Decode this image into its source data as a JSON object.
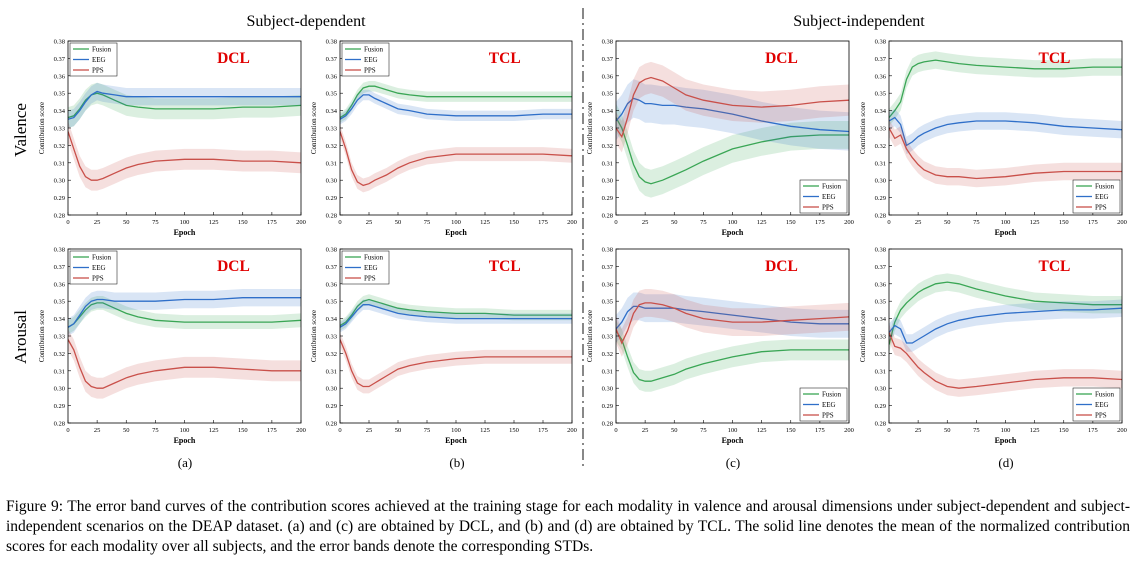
{
  "headers": {
    "left": "Subject-dependent",
    "right": "Subject-independent"
  },
  "row_labels": [
    "Valence",
    "Arousal"
  ],
  "column_labels": [
    "(a)",
    "(b)",
    "(c)",
    "(d)"
  ],
  "caption": "Figure 9: The error band curves of the contribution scores achieved at the training stage for each modality in valence and arousal dimensions under subject-dependent and subject-independent scenarios on the DEAP dataset. (a) and (c) are obtained by DCL, and (b) and (d) are obtained by TCL. The solid line denotes the mean of the normalized contribution scores for each modality over all subjects, and the error bands denote the corresponding STDs.",
  "colors": {
    "Fusion": "#3aa655",
    "EEG": "#2f6fc9",
    "PPS": "#c9504a",
    "method": "#e00000",
    "divider": "#888888"
  },
  "chart_data": [
    {
      "type": "line",
      "row": "Valence",
      "column": "(a)",
      "method": "DCL",
      "xlabel": "Epoch",
      "ylabel": "Contribution score",
      "xlim": [
        0,
        200
      ],
      "ylim": [
        0.28,
        0.38
      ],
      "xticks": [
        0,
        25,
        50,
        75,
        100,
        125,
        150,
        175,
        200
      ],
      "yticks": [
        0.28,
        0.29,
        0.3,
        0.31,
        0.32,
        0.33,
        0.34,
        0.35,
        0.36,
        0.37,
        0.38
      ],
      "legend_position": "top-left",
      "band": true,
      "x": [
        0,
        5,
        10,
        15,
        20,
        25,
        30,
        40,
        50,
        60,
        75,
        100,
        125,
        150,
        175,
        200
      ],
      "series": [
        {
          "name": "Fusion",
          "values": [
            0.336,
            0.337,
            0.341,
            0.346,
            0.349,
            0.35,
            0.349,
            0.346,
            0.343,
            0.342,
            0.341,
            0.341,
            0.341,
            0.342,
            0.342,
            0.343
          ],
          "std": 0.006
        },
        {
          "name": "EEG",
          "values": [
            0.335,
            0.336,
            0.34,
            0.345,
            0.349,
            0.351,
            0.35,
            0.349,
            0.348,
            0.348,
            0.348,
            0.348,
            0.348,
            0.348,
            0.348,
            0.348
          ],
          "std": 0.005
        },
        {
          "name": "PPS",
          "values": [
            0.328,
            0.318,
            0.308,
            0.302,
            0.3,
            0.3,
            0.301,
            0.304,
            0.307,
            0.309,
            0.311,
            0.312,
            0.312,
            0.311,
            0.311,
            0.31
          ],
          "std": 0.006
        }
      ]
    },
    {
      "type": "line",
      "row": "Valence",
      "column": "(b)",
      "method": "TCL",
      "xlabel": "Epoch",
      "ylabel": "Contribution score",
      "xlim": [
        0,
        200
      ],
      "ylim": [
        0.28,
        0.38
      ],
      "xticks": [
        0,
        25,
        50,
        75,
        100,
        125,
        150,
        175,
        200
      ],
      "yticks": [
        0.28,
        0.29,
        0.3,
        0.31,
        0.32,
        0.33,
        0.34,
        0.35,
        0.36,
        0.37,
        0.38
      ],
      "legend_position": "top-left",
      "band": true,
      "x": [
        0,
        5,
        10,
        15,
        20,
        25,
        30,
        40,
        50,
        60,
        75,
        100,
        125,
        150,
        175,
        200
      ],
      "series": [
        {
          "name": "Fusion",
          "values": [
            0.336,
            0.338,
            0.343,
            0.349,
            0.353,
            0.354,
            0.354,
            0.352,
            0.35,
            0.349,
            0.348,
            0.348,
            0.348,
            0.348,
            0.348,
            0.348
          ],
          "std": 0.003
        },
        {
          "name": "EEG",
          "values": [
            0.335,
            0.337,
            0.341,
            0.346,
            0.349,
            0.349,
            0.347,
            0.344,
            0.341,
            0.34,
            0.338,
            0.337,
            0.337,
            0.337,
            0.338,
            0.338
          ],
          "std": 0.003
        },
        {
          "name": "PPS",
          "values": [
            0.328,
            0.318,
            0.306,
            0.299,
            0.297,
            0.298,
            0.3,
            0.303,
            0.307,
            0.31,
            0.313,
            0.315,
            0.315,
            0.315,
            0.315,
            0.314
          ],
          "std": 0.004
        }
      ]
    },
    {
      "type": "line",
      "row": "Valence",
      "column": "(c)",
      "method": "DCL",
      "xlabel": "Epoch",
      "ylabel": "Contribution score",
      "xlim": [
        0,
        200
      ],
      "ylim": [
        0.28,
        0.38
      ],
      "xticks": [
        0,
        25,
        50,
        75,
        100,
        125,
        150,
        175,
        200
      ],
      "yticks": [
        0.28,
        0.29,
        0.3,
        0.31,
        0.32,
        0.33,
        0.34,
        0.35,
        0.36,
        0.37,
        0.38
      ],
      "legend_position": "bottom-right",
      "band": true,
      "x": [
        0,
        5,
        10,
        15,
        20,
        25,
        30,
        40,
        50,
        60,
        75,
        100,
        125,
        150,
        175,
        200
      ],
      "series": [
        {
          "name": "Fusion",
          "values": [
            0.336,
            0.33,
            0.32,
            0.309,
            0.302,
            0.299,
            0.298,
            0.3,
            0.303,
            0.306,
            0.311,
            0.318,
            0.322,
            0.325,
            0.326,
            0.326
          ],
          "std": 0.008
        },
        {
          "name": "EEG",
          "values": [
            0.334,
            0.338,
            0.344,
            0.347,
            0.346,
            0.344,
            0.344,
            0.343,
            0.343,
            0.342,
            0.341,
            0.338,
            0.334,
            0.331,
            0.329,
            0.328
          ],
          "std": 0.011
        },
        {
          "name": "PPS",
          "values": [
            0.33,
            0.325,
            0.336,
            0.349,
            0.356,
            0.358,
            0.359,
            0.357,
            0.353,
            0.349,
            0.346,
            0.343,
            0.342,
            0.343,
            0.345,
            0.346
          ],
          "std": 0.009
        }
      ]
    },
    {
      "type": "line",
      "row": "Valence",
      "column": "(d)",
      "method": "TCL",
      "xlabel": "Epoch",
      "ylabel": "Contribution score",
      "xlim": [
        0,
        200
      ],
      "ylim": [
        0.28,
        0.38
      ],
      "xticks": [
        0,
        25,
        50,
        75,
        100,
        125,
        150,
        175,
        200
      ],
      "yticks": [
        0.28,
        0.29,
        0.3,
        0.31,
        0.32,
        0.33,
        0.34,
        0.35,
        0.36,
        0.37,
        0.38
      ],
      "legend_position": "bottom-right",
      "band": true,
      "x": [
        0,
        5,
        10,
        15,
        20,
        25,
        30,
        40,
        50,
        60,
        75,
        100,
        125,
        150,
        175,
        200
      ],
      "series": [
        {
          "name": "Fusion",
          "values": [
            0.336,
            0.34,
            0.345,
            0.358,
            0.365,
            0.367,
            0.368,
            0.369,
            0.368,
            0.367,
            0.366,
            0.365,
            0.364,
            0.364,
            0.365,
            0.365
          ],
          "std": 0.005
        },
        {
          "name": "EEG",
          "values": [
            0.334,
            0.336,
            0.332,
            0.32,
            0.322,
            0.325,
            0.327,
            0.33,
            0.332,
            0.333,
            0.334,
            0.334,
            0.333,
            0.331,
            0.33,
            0.329
          ],
          "std": 0.005
        },
        {
          "name": "PPS",
          "values": [
            0.33,
            0.324,
            0.326,
            0.318,
            0.313,
            0.309,
            0.306,
            0.303,
            0.302,
            0.302,
            0.301,
            0.302,
            0.304,
            0.305,
            0.305,
            0.305
          ],
          "std": 0.005
        }
      ]
    },
    {
      "type": "line",
      "row": "Arousal",
      "column": "(a)",
      "method": "DCL",
      "xlabel": "Epoch",
      "ylabel": "Contribution score",
      "xlim": [
        0,
        200
      ],
      "ylim": [
        0.28,
        0.38
      ],
      "xticks": [
        0,
        25,
        50,
        75,
        100,
        125,
        150,
        175,
        200
      ],
      "yticks": [
        0.28,
        0.29,
        0.3,
        0.31,
        0.32,
        0.33,
        0.34,
        0.35,
        0.36,
        0.37,
        0.38
      ],
      "legend_position": "top-left",
      "band": true,
      "x": [
        0,
        5,
        10,
        15,
        20,
        25,
        30,
        40,
        50,
        60,
        75,
        100,
        125,
        150,
        175,
        200
      ],
      "series": [
        {
          "name": "Fusion",
          "values": [
            0.335,
            0.337,
            0.341,
            0.345,
            0.348,
            0.349,
            0.349,
            0.346,
            0.343,
            0.341,
            0.339,
            0.338,
            0.338,
            0.338,
            0.338,
            0.339
          ],
          "std": 0.004
        },
        {
          "name": "EEG",
          "values": [
            0.335,
            0.337,
            0.342,
            0.347,
            0.35,
            0.351,
            0.351,
            0.35,
            0.35,
            0.35,
            0.35,
            0.351,
            0.351,
            0.352,
            0.352,
            0.352
          ],
          "std": 0.005
        },
        {
          "name": "PPS",
          "values": [
            0.328,
            0.322,
            0.312,
            0.304,
            0.301,
            0.3,
            0.3,
            0.303,
            0.306,
            0.308,
            0.31,
            0.312,
            0.312,
            0.311,
            0.31,
            0.31
          ],
          "std": 0.006
        }
      ]
    },
    {
      "type": "line",
      "row": "Arousal",
      "column": "(b)",
      "method": "TCL",
      "xlabel": "Epoch",
      "ylabel": "Contribution score",
      "xlim": [
        0,
        200
      ],
      "ylim": [
        0.28,
        0.38
      ],
      "xticks": [
        0,
        25,
        50,
        75,
        100,
        125,
        150,
        175,
        200
      ],
      "yticks": [
        0.28,
        0.29,
        0.3,
        0.31,
        0.32,
        0.33,
        0.34,
        0.35,
        0.36,
        0.37,
        0.38
      ],
      "legend_position": "top-left",
      "band": true,
      "x": [
        0,
        5,
        10,
        15,
        20,
        25,
        30,
        40,
        50,
        60,
        75,
        100,
        125,
        150,
        175,
        200
      ],
      "series": [
        {
          "name": "Fusion",
          "values": [
            0.336,
            0.338,
            0.342,
            0.347,
            0.35,
            0.351,
            0.35,
            0.348,
            0.346,
            0.345,
            0.344,
            0.343,
            0.343,
            0.342,
            0.342,
            0.342
          ],
          "std": 0.003
        },
        {
          "name": "EEG",
          "values": [
            0.335,
            0.337,
            0.341,
            0.345,
            0.348,
            0.348,
            0.347,
            0.345,
            0.343,
            0.342,
            0.341,
            0.34,
            0.34,
            0.34,
            0.34,
            0.34
          ],
          "std": 0.003
        },
        {
          "name": "PPS",
          "values": [
            0.328,
            0.32,
            0.31,
            0.303,
            0.301,
            0.301,
            0.303,
            0.307,
            0.311,
            0.313,
            0.315,
            0.317,
            0.318,
            0.318,
            0.318,
            0.318
          ],
          "std": 0.004
        }
      ]
    },
    {
      "type": "line",
      "row": "Arousal",
      "column": "(c)",
      "method": "DCL",
      "xlabel": "Epoch",
      "ylabel": "Contribution score",
      "xlim": [
        0,
        200
      ],
      "ylim": [
        0.28,
        0.38
      ],
      "xticks": [
        0,
        25,
        50,
        75,
        100,
        125,
        150,
        175,
        200
      ],
      "yticks": [
        0.28,
        0.29,
        0.3,
        0.31,
        0.32,
        0.33,
        0.34,
        0.35,
        0.36,
        0.37,
        0.38
      ],
      "legend_position": "bottom-right",
      "band": true,
      "x": [
        0,
        5,
        10,
        15,
        20,
        25,
        30,
        40,
        50,
        60,
        75,
        100,
        125,
        150,
        175,
        200
      ],
      "series": [
        {
          "name": "Fusion",
          "values": [
            0.333,
            0.328,
            0.318,
            0.309,
            0.305,
            0.304,
            0.304,
            0.306,
            0.308,
            0.311,
            0.314,
            0.318,
            0.321,
            0.322,
            0.322,
            0.322
          ],
          "std": 0.006
        },
        {
          "name": "EEG",
          "values": [
            0.334,
            0.338,
            0.344,
            0.347,
            0.347,
            0.346,
            0.346,
            0.346,
            0.346,
            0.345,
            0.344,
            0.342,
            0.34,
            0.338,
            0.337,
            0.337
          ],
          "std": 0.008
        },
        {
          "name": "PPS",
          "values": [
            0.334,
            0.326,
            0.333,
            0.343,
            0.348,
            0.349,
            0.349,
            0.348,
            0.346,
            0.343,
            0.34,
            0.338,
            0.338,
            0.339,
            0.34,
            0.341
          ],
          "std": 0.008
        }
      ]
    },
    {
      "type": "line",
      "row": "Arousal",
      "column": "(d)",
      "method": "TCL",
      "xlabel": "Epoch",
      "ylabel": "Contribution score",
      "xlim": [
        0,
        200
      ],
      "ylim": [
        0.28,
        0.38
      ],
      "xticks": [
        0,
        25,
        50,
        75,
        100,
        125,
        150,
        175,
        200
      ],
      "yticks": [
        0.28,
        0.29,
        0.3,
        0.31,
        0.32,
        0.33,
        0.34,
        0.35,
        0.36,
        0.37,
        0.38
      ],
      "legend_position": "bottom-right",
      "band": true,
      "x": [
        0,
        5,
        10,
        15,
        20,
        25,
        30,
        40,
        50,
        60,
        75,
        100,
        125,
        150,
        175,
        200
      ],
      "series": [
        {
          "name": "Fusion",
          "values": [
            0.325,
            0.338,
            0.345,
            0.349,
            0.352,
            0.355,
            0.357,
            0.36,
            0.361,
            0.36,
            0.357,
            0.353,
            0.35,
            0.349,
            0.348,
            0.348
          ],
          "std": 0.005
        },
        {
          "name": "EEG",
          "values": [
            0.332,
            0.336,
            0.334,
            0.326,
            0.326,
            0.328,
            0.33,
            0.334,
            0.337,
            0.339,
            0.341,
            0.343,
            0.344,
            0.345,
            0.345,
            0.346
          ],
          "std": 0.005
        },
        {
          "name": "PPS",
          "values": [
            0.332,
            0.324,
            0.323,
            0.32,
            0.316,
            0.312,
            0.309,
            0.304,
            0.301,
            0.3,
            0.301,
            0.303,
            0.305,
            0.306,
            0.306,
            0.305
          ],
          "std": 0.005
        }
      ]
    }
  ]
}
